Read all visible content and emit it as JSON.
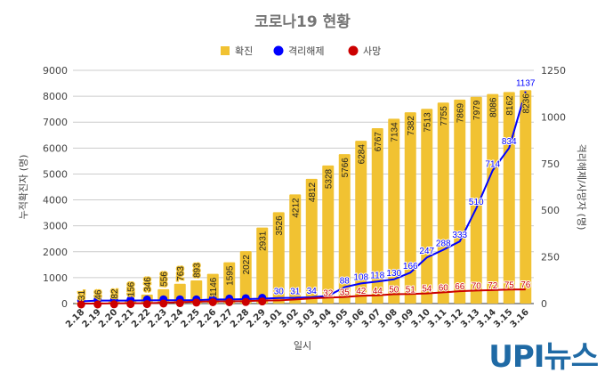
{
  "chart_data": {
    "type": "bar+line",
    "title": "코로나19 현황",
    "xlabel": "일시",
    "ylabel_left": "누적확진자 (명)",
    "ylabel_right": "격리해제/사망자 (명)",
    "ylim_left": [
      0,
      9000
    ],
    "yticks_left": [
      0,
      1000,
      2000,
      3000,
      4000,
      5000,
      6000,
      7000,
      8000,
      9000
    ],
    "ylim_right": [
      0,
      1250
    ],
    "yticks_right": [
      0,
      250,
      500,
      750,
      1000,
      1250
    ],
    "grid": true,
    "legend_position": "top",
    "categories": [
      "2.18",
      "2.19",
      "2.20",
      "2.21",
      "2.22",
      "2.23",
      "2.24",
      "2.25",
      "2.26",
      "2.27",
      "2.28",
      "2.29",
      "3.01",
      "3.02",
      "3.03",
      "3.04",
      "3.05",
      "3.06",
      "3.07",
      "3.08",
      "3.09",
      "3.10",
      "3.11",
      "3.12",
      "3.13",
      "3.14",
      "3.15",
      "3.16"
    ],
    "series": [
      {
        "name": "확진",
        "type": "bar",
        "axis": "left",
        "color": "#f1c232",
        "values": [
          31,
          46,
          82,
          156,
          346,
          556,
          763,
          893,
          1146,
          1595,
          2022,
          2931,
          3526,
          4212,
          4812,
          5328,
          5766,
          6284,
          6767,
          7134,
          7382,
          7513,
          7755,
          7869,
          7979,
          8086,
          8162,
          8236
        ]
      },
      {
        "name": "격리해제",
        "type": "line",
        "axis": "right",
        "color": "#0000ff",
        "values": [
          12,
          16,
          16,
          16,
          17,
          18,
          18,
          18,
          22,
          22,
          24,
          26,
          30,
          31,
          34,
          41,
          88,
          108,
          118,
          130,
          166,
          247,
          288,
          333,
          510,
          714,
          834,
          1137
        ]
      },
      {
        "name": "사망",
        "type": "line",
        "axis": "right",
        "color": "#cc0000",
        "values": [
          0,
          0,
          1,
          2,
          2,
          5,
          7,
          10,
          12,
          12,
          13,
          16,
          17,
          22,
          28,
          32,
          35,
          42,
          44,
          50,
          51,
          54,
          60,
          66,
          70,
          72,
          75,
          76
        ]
      }
    ]
  },
  "logo": {
    "text": "UPI뉴스",
    "color": "#1f6aa5"
  }
}
